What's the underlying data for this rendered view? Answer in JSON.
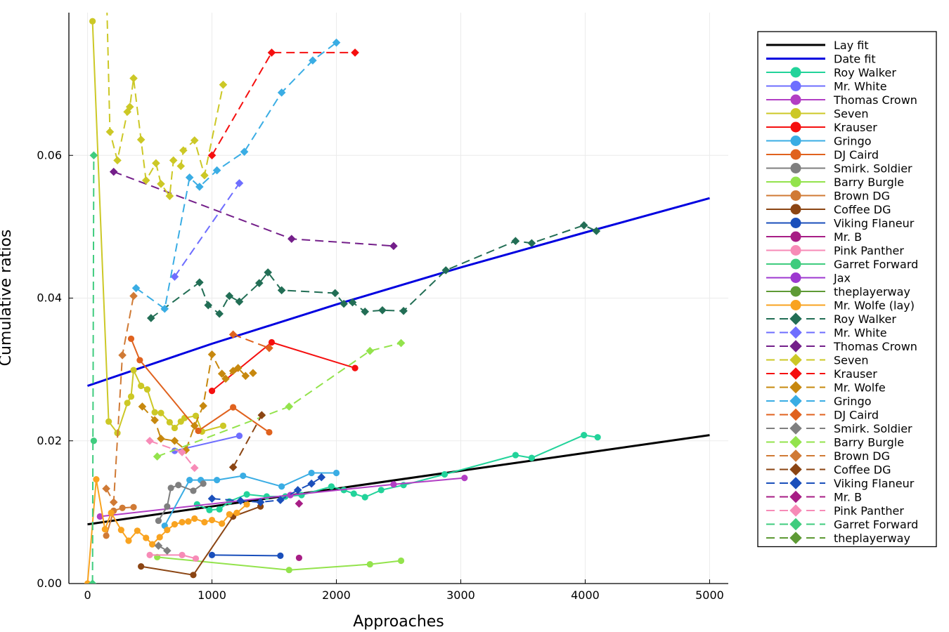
{
  "chart_data": {
    "type": "line",
    "title": "",
    "xlabel": "Approaches",
    "ylabel": "Cumulative ratios",
    "xlim": [
      -150,
      5150
    ],
    "ylim": [
      0,
      0.08
    ],
    "xticks": [
      0,
      1000,
      2000,
      3000,
      4000,
      5000
    ],
    "xtick_labels": [
      "0",
      "1000",
      "2000",
      "3000",
      "4000",
      "5000"
    ],
    "yticks": [
      0,
      0.02,
      0.04,
      0.06
    ],
    "ytick_labels": [
      "0.00",
      "0.02",
      "0.04",
      "0.06"
    ],
    "grid": true,
    "legend_position": "top-right",
    "series": [
      {
        "name": "Lay fit",
        "color": "#000000",
        "dash": "solid",
        "marker": "none",
        "width": 3,
        "x": [
          0,
          1000,
          2000,
          3000,
          4000,
          5000
        ],
        "y": [
          0.0083,
          0.0108,
          0.0133,
          0.0158,
          0.0183,
          0.0208
        ]
      },
      {
        "name": "Date fit",
        "color": "#0000e0",
        "dash": "solid",
        "marker": "none",
        "width": 3,
        "x": [
          0,
          1000,
          2000,
          3000,
          4000,
          5000
        ],
        "y": [
          0.0277,
          0.0336,
          0.0391,
          0.0443,
          0.0492,
          0.054
        ]
      },
      {
        "name": "Roy Walker",
        "color": "#22d39a",
        "dash": "solid",
        "marker": "circle",
        "x": [
          880,
          980,
          1060,
          1140,
          1280,
          1440,
          1590,
          1720,
          1960,
          2060,
          2140,
          2230,
          2360,
          2540,
          2870,
          3440,
          3570,
          3990,
          4100
        ],
        "y": [
          0.0111,
          0.0103,
          0.0104,
          0.0115,
          0.0125,
          0.0122,
          0.0122,
          0.0124,
          0.0136,
          0.0131,
          0.0126,
          0.0121,
          0.0131,
          0.0138,
          0.0153,
          0.018,
          0.0176,
          0.0208,
          0.0205
        ]
      },
      {
        "name": "Mr. White",
        "color": "#6e6eff",
        "dash": "solid",
        "marker": "circle",
        "x": [
          700,
          1220
        ],
        "y": [
          0.0186,
          0.0207
        ]
      },
      {
        "name": "Thomas Crown",
        "color": "#b23ec4",
        "dash": "solid",
        "marker": "circle",
        "x": [
          100,
          1630,
          2460,
          3030
        ],
        "y": [
          0.0094,
          0.0124,
          0.0139,
          0.0148
        ]
      },
      {
        "name": "Seven",
        "color": "#ccc826",
        "dash": "solid",
        "marker": "circle",
        "x": [
          40,
          170,
          240,
          320,
          350,
          370,
          430,
          480,
          540,
          590,
          660,
          700,
          750,
          780,
          870,
          920,
          1090
        ],
        "y": [
          0.0788,
          0.0227,
          0.0211,
          0.0253,
          0.0262,
          0.0299,
          0.0277,
          0.0272,
          0.024,
          0.0239,
          0.0226,
          0.0218,
          0.0227,
          0.0232,
          0.0235,
          0.0213,
          0.0221
        ]
      },
      {
        "name": "Krauser",
        "color": "#f50f0f",
        "dash": "solid",
        "marker": "circle",
        "x": [
          1000,
          1480,
          2150
        ],
        "y": [
          0.027,
          0.0338,
          0.0302
        ]
      },
      {
        "name": "Gringo",
        "color": "#3aade4",
        "dash": "solid",
        "marker": "circle",
        "x": [
          620,
          820,
          910,
          1040,
          1250,
          1560,
          1800,
          2000
        ],
        "y": [
          0.0081,
          0.0145,
          0.0145,
          0.0145,
          0.0151,
          0.0136,
          0.0155,
          0.0155
        ]
      },
      {
        "name": "DJ Caird",
        "color": "#e0621e",
        "dash": "solid",
        "marker": "circle",
        "x": [
          350,
          420,
          890,
          1170,
          1460
        ],
        "y": [
          0.0343,
          0.0313,
          0.0214,
          0.0247,
          0.0212
        ]
      },
      {
        "name": "Smirk. Soldier",
        "color": "#7f7f7f",
        "dash": "solid",
        "marker": "circle",
        "x": [
          570,
          640,
          670,
          730,
          850,
          930
        ],
        "y": [
          0.0088,
          0.0108,
          0.0134,
          0.0138,
          0.013,
          0.014
        ]
      },
      {
        "name": "Barry Burgle",
        "color": "#93e34c",
        "dash": "solid",
        "marker": "circle",
        "x": [
          560,
          1620,
          2270,
          2520
        ],
        "y": [
          0.0037,
          0.0019,
          0.0027,
          0.0032
        ]
      },
      {
        "name": "Brown DG",
        "color": "#d07a35",
        "dash": "solid",
        "marker": "circle",
        "x": [
          150,
          210,
          280,
          370
        ],
        "y": [
          0.0067,
          0.0102,
          0.0106,
          0.0107
        ]
      },
      {
        "name": "Coffee DG",
        "color": "#8b4513",
        "dash": "solid",
        "marker": "circle",
        "x": [
          430,
          850,
          1170,
          1390
        ],
        "y": [
          0.0024,
          0.0012,
          0.0094,
          0.0108
        ]
      },
      {
        "name": "Viking Flaneur",
        "color": "#1a4fbb",
        "dash": "solid",
        "marker": "circle",
        "x": [
          1000,
          1550
        ],
        "y": [
          0.004,
          0.0039
        ]
      },
      {
        "name": "Mr. B",
        "color": "#a71d85",
        "dash": "solid",
        "marker": "circle",
        "x": [
          1700
        ],
        "y": [
          0.0036
        ]
      },
      {
        "name": "Pink Panther",
        "color": "#f78bb7",
        "dash": "solid",
        "marker": "circle",
        "x": [
          500,
          760,
          870
        ],
        "y": [
          0.004,
          0.004,
          0.0035
        ]
      },
      {
        "name": "Garret Forward",
        "color": "#3fcc7e",
        "dash": "solid",
        "marker": "circle",
        "x": [
          50
        ],
        "y": [
          0.02
        ]
      },
      {
        "name": "Jax",
        "color": "#9d38d0",
        "dash": "solid",
        "marker": "circle",
        "x": [],
        "y": []
      },
      {
        "name": "theplayerway",
        "color": "#5e9a35",
        "dash": "solid",
        "marker": "circle",
        "x": [],
        "y": []
      },
      {
        "name": "Mr. Wolfe (lay)",
        "color": "#f9a320",
        "dash": "solid",
        "marker": "circle",
        "x": [
          0,
          70,
          140,
          190,
          270,
          330,
          400,
          470,
          520,
          580,
          640,
          700,
          760,
          810,
          860,
          940,
          1000,
          1080,
          1140,
          1200,
          1280
        ],
        "y": [
          0.0,
          0.0146,
          0.0076,
          0.0099,
          0.0075,
          0.006,
          0.0074,
          0.0064,
          0.0055,
          0.0065,
          0.0075,
          0.0083,
          0.0086,
          0.0087,
          0.0091,
          0.0086,
          0.0089,
          0.0084,
          0.0097,
          0.0099,
          0.0111
        ]
      },
      {
        "name": "Roy Walker",
        "color": "#226e55",
        "dash": "dashed",
        "marker": "diamond",
        "x": [
          510,
          900,
          970,
          1060,
          1140,
          1220,
          1380,
          1450,
          1560,
          1990,
          2060,
          2130,
          2230,
          2370,
          2540,
          2880,
          3440,
          3570,
          3990,
          4090
        ],
        "y": [
          0.0372,
          0.0422,
          0.039,
          0.0378,
          0.0403,
          0.0395,
          0.0421,
          0.0436,
          0.0411,
          0.0407,
          0.0392,
          0.0394,
          0.0381,
          0.0383,
          0.0382,
          0.0439,
          0.048,
          0.0477,
          0.0502,
          0.0494
        ]
      },
      {
        "name": "Mr. White",
        "color": "#6e6eff",
        "dash": "dashed",
        "marker": "diamond",
        "x": [
          700,
          1220
        ],
        "y": [
          0.043,
          0.0561
        ]
      },
      {
        "name": "Thomas Crown",
        "color": "#741f8a",
        "dash": "dashed",
        "marker": "diamond",
        "x": [
          210,
          1640,
          2460
        ],
        "y": [
          0.0577,
          0.0483,
          0.0473
        ]
      },
      {
        "name": "Seven",
        "color": "#ccc826",
        "dash": "dashed",
        "marker": "diamond",
        "x": [
          140,
          180,
          240,
          320,
          340,
          370,
          430,
          470,
          550,
          590,
          660,
          690,
          750,
          770,
          860,
          940,
          1090
        ],
        "y": [
          0.092,
          0.0633,
          0.0593,
          0.0661,
          0.0668,
          0.0708,
          0.0622,
          0.0565,
          0.0589,
          0.056,
          0.0543,
          0.0593,
          0.0585,
          0.0607,
          0.0621,
          0.0572,
          0.0699
        ]
      },
      {
        "name": "Krauser",
        "color": "#f50f0f",
        "dash": "dashed",
        "marker": "diamond",
        "x": [
          1000,
          1480,
          2150
        ],
        "y": [
          0.06,
          0.0744,
          0.0744
        ]
      },
      {
        "name": "Mr. Wolfe",
        "color": "#c7880e",
        "dash": "dashed",
        "marker": "diamond",
        "x": [
          440,
          540,
          590,
          700,
          790,
          860,
          930,
          1000,
          1080,
          1110,
          1170,
          1210,
          1270,
          1330
        ],
        "y": [
          0.0248,
          0.0229,
          0.0203,
          0.02,
          0.0187,
          0.0221,
          0.0249,
          0.0321,
          0.0294,
          0.0287,
          0.0298,
          0.0302,
          0.0291,
          0.0295
        ]
      },
      {
        "name": "Gringo",
        "color": "#3aade4",
        "dash": "dashed",
        "marker": "diamond",
        "x": [
          390,
          620,
          820,
          900,
          1040,
          1260,
          1560,
          1810,
          2000
        ],
        "y": [
          0.0414,
          0.0385,
          0.0569,
          0.0556,
          0.0579,
          0.0605,
          0.0688,
          0.0733,
          0.0758
        ]
      },
      {
        "name": "DJ Caird",
        "color": "#e0621e",
        "dash": "dashed",
        "marker": "diamond",
        "x": [
          1170,
          1460
        ],
        "y": [
          0.0349,
          0.033
        ]
      },
      {
        "name": "Smirk. Soldier",
        "color": "#7f7f7f",
        "dash": "dashed",
        "marker": "diamond",
        "x": [
          570,
          640
        ],
        "y": [
          0.0053,
          0.0046
        ]
      },
      {
        "name": "Barry Burgle",
        "color": "#93e34c",
        "dash": "dashed",
        "marker": "diamond",
        "x": [
          560,
          1620,
          2270,
          2520
        ],
        "y": [
          0.0178,
          0.0248,
          0.0326,
          0.0337
        ]
      },
      {
        "name": "Brown DG",
        "color": "#d07a35",
        "dash": "dashed",
        "marker": "diamond",
        "x": [
          150,
          210,
          280,
          370
        ],
        "y": [
          0.0133,
          0.0114,
          0.032,
          0.0403
        ]
      },
      {
        "name": "Coffee DG",
        "color": "#8b4513",
        "dash": "dashed",
        "marker": "diamond",
        "x": [
          1170,
          1400
        ],
        "y": [
          0.0163,
          0.0236
        ]
      },
      {
        "name": "Viking Flaneur",
        "color": "#1a4fbb",
        "dash": "dashed",
        "marker": "diamond",
        "x": [
          1000,
          1230,
          1390,
          1550,
          1690,
          1800,
          1880
        ],
        "y": [
          0.0119,
          0.0116,
          0.0114,
          0.0117,
          0.0131,
          0.014,
          0.0149
        ]
      },
      {
        "name": "Mr. B",
        "color": "#a71d85",
        "dash": "dashed",
        "marker": "diamond",
        "x": [
          1700
        ],
        "y": [
          0.0112
        ]
      },
      {
        "name": "Pink Panther",
        "color": "#f78bb7",
        "dash": "dashed",
        "marker": "diamond",
        "x": [
          500,
          760,
          860
        ],
        "y": [
          0.02,
          0.0184,
          0.0162
        ]
      },
      {
        "name": "Garret Forward",
        "color": "#3fcc7e",
        "dash": "dashed",
        "marker": "diamond",
        "x": [
          40,
          50
        ],
        "y": [
          0.0,
          0.06
        ]
      },
      {
        "name": "theplayerway",
        "color": "#5e9a35",
        "dash": "dashed",
        "marker": "diamond",
        "x": [],
        "y": []
      }
    ]
  }
}
